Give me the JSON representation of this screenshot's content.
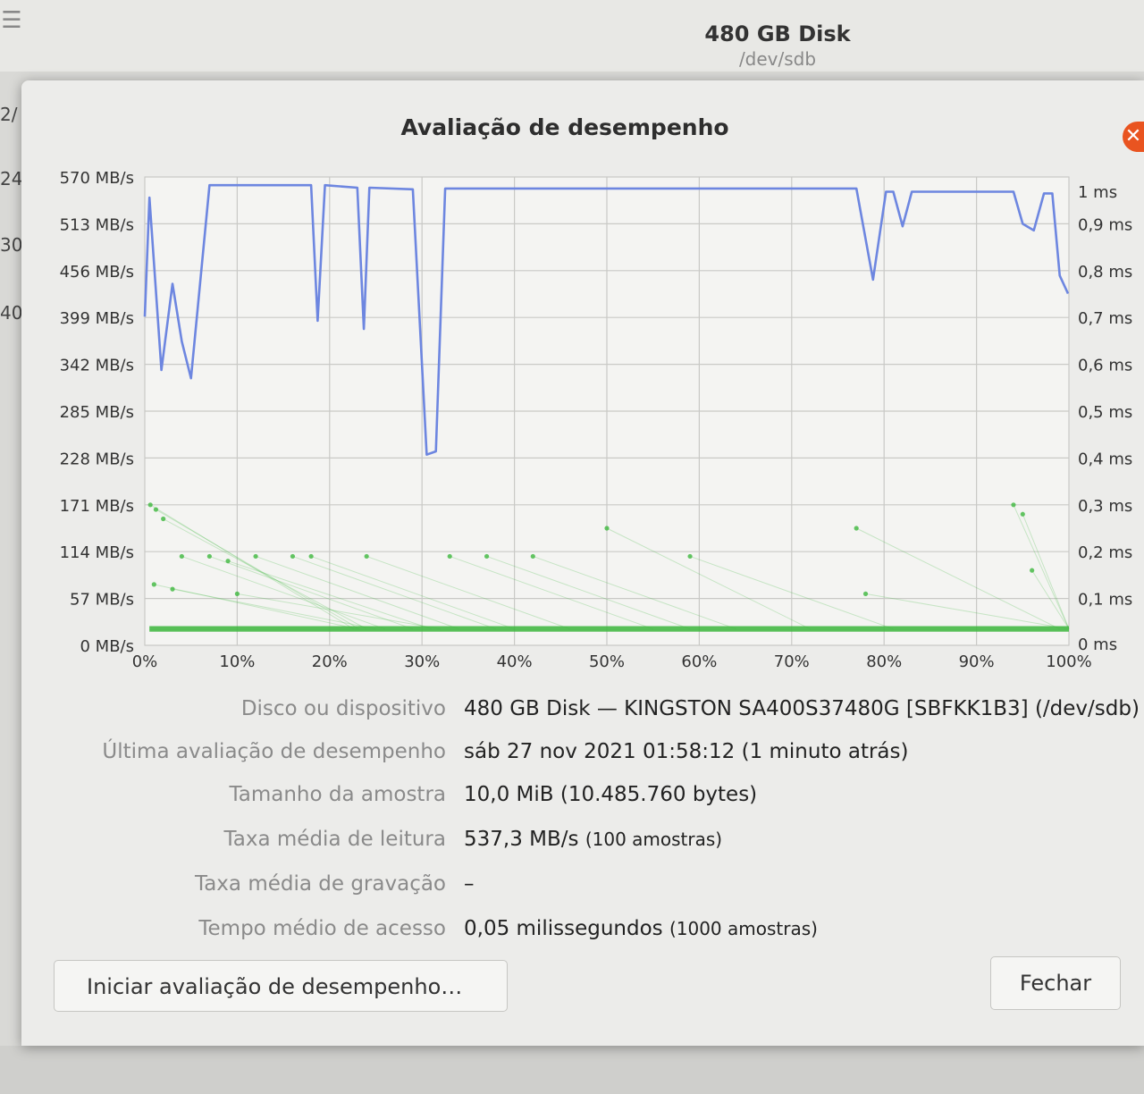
{
  "background": {
    "title": "480 GB Disk",
    "subtitle": "/dev/sdb",
    "left_fragments": [
      "2/",
      "24(",
      "30(",
      "40("
    ]
  },
  "dialog": {
    "title": "Avaliação de desempenho",
    "close_icon": "close-icon"
  },
  "chart_data": {
    "type": "line",
    "title": "",
    "xlabel": "",
    "ylabel": "",
    "x_ticks": [
      "0%",
      "10%",
      "20%",
      "30%",
      "40%",
      "50%",
      "60%",
      "70%",
      "80%",
      "90%",
      "100%"
    ],
    "y_left_ticks": [
      "0 MB/s",
      "57 MB/s",
      "114 MB/s",
      "171 MB/s",
      "228 MB/s",
      "285 MB/s",
      "342 MB/s",
      "399 MB/s",
      "456 MB/s",
      "513 MB/s",
      "570 MB/s"
    ],
    "y_right_ticks": [
      "0 ms",
      "0,1 ms",
      "0,2 ms",
      "0,3 ms",
      "0,4 ms",
      "0,5 ms",
      "0,6 ms",
      "0,7 ms",
      "0,8 ms",
      "0,9 ms",
      "1 ms"
    ],
    "ylim_left": [
      0,
      570
    ],
    "ylim_right": [
      0,
      1
    ],
    "xlim": [
      0,
      100
    ],
    "grid": true,
    "series": [
      {
        "color": "#6d86e0",
        "axis": "left",
        "points": [
          [
            0,
            400
          ],
          [
            0.5,
            545
          ],
          [
            1.8,
            335
          ],
          [
            3,
            440
          ],
          [
            4,
            370
          ],
          [
            5,
            325
          ],
          [
            7,
            560
          ],
          [
            18,
            560
          ],
          [
            18.7,
            395
          ],
          [
            19.5,
            560
          ],
          [
            23,
            557
          ],
          [
            23.7,
            385
          ],
          [
            24.3,
            557
          ],
          [
            29,
            555
          ],
          [
            30.5,
            232
          ],
          [
            31.5,
            236
          ],
          [
            32.5,
            556
          ],
          [
            77,
            556
          ],
          [
            78.8,
            445
          ],
          [
            80.2,
            552
          ],
          [
            81,
            552
          ],
          [
            82,
            510
          ],
          [
            83,
            552
          ],
          [
            94,
            552
          ],
          [
            95,
            513
          ],
          [
            96.2,
            505
          ],
          [
            97.3,
            550
          ],
          [
            98.2,
            550
          ],
          [
            99,
            450
          ],
          [
            99.9,
            428
          ]
        ]
      },
      {
        "color": "#3fb83f",
        "axis": "right",
        "baseline": 0.035,
        "scatter": [
          [
            0.6,
            0.3
          ],
          [
            1.2,
            0.29
          ],
          [
            2,
            0.27
          ],
          [
            4,
            0.19
          ],
          [
            7,
            0.19
          ],
          [
            9,
            0.18
          ],
          [
            12,
            0.19
          ],
          [
            16,
            0.19
          ],
          [
            18,
            0.19
          ],
          [
            24,
            0.19
          ],
          [
            33,
            0.19
          ],
          [
            37,
            0.19
          ],
          [
            42,
            0.19
          ],
          [
            50,
            0.25
          ],
          [
            59,
            0.19
          ],
          [
            77,
            0.25
          ],
          [
            78,
            0.11
          ],
          [
            94,
            0.3
          ],
          [
            95,
            0.28
          ],
          [
            96,
            0.16
          ],
          [
            1,
            0.13
          ],
          [
            3,
            0.12
          ],
          [
            10,
            0.11
          ]
        ]
      }
    ]
  },
  "info": {
    "rows": [
      {
        "label": "Disco ou dispositivo",
        "value": "480 GB Disk — KINGSTON SA400S37480G [SBFKK1B3] (/dev/sdb)",
        "note": ""
      },
      {
        "label": "Última avaliação de desempenho",
        "value": "sáb 27 nov 2021 01:58:12 (1 minuto atrás)",
        "note": ""
      },
      {
        "label": "Tamanho da amostra",
        "value": "10,0 MiB (10.485.760 bytes)",
        "note": ""
      },
      {
        "label": "Taxa média de leitura",
        "value": "537,3 MB/s ",
        "note": "(100 amostras)"
      },
      {
        "label": "Taxa média de gravação",
        "value": "–",
        "note": ""
      },
      {
        "label": "Tempo médio de acesso",
        "value": "0,05 milissegundos ",
        "note": "(1000 amostras)"
      }
    ]
  },
  "buttons": {
    "start": "Iniciar avaliação de desempenho…",
    "close": "Fechar"
  }
}
